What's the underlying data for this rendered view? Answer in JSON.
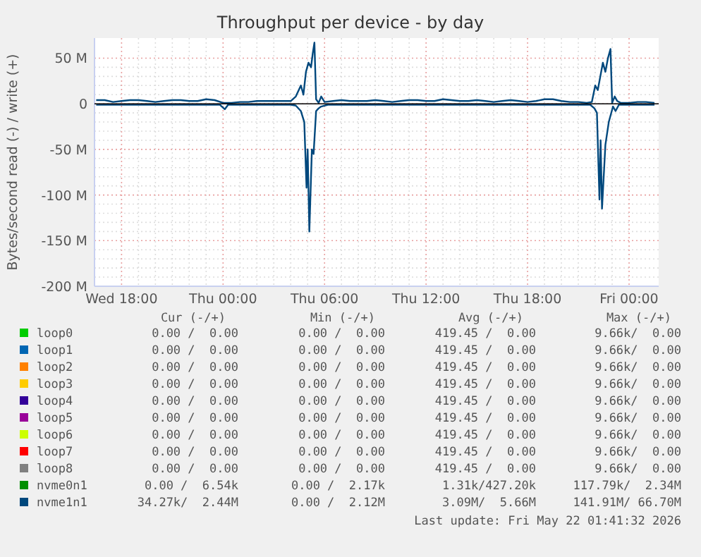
{
  "chart_data": {
    "type": "line",
    "title": "Throughput per device - by day",
    "ylabel": "Bytes/second read (-) / write (+)",
    "xlim": [
      "2026-05-20T16:24",
      "2026-05-22T01:45"
    ],
    "xticks": [
      {
        "value": "2026-05-20T18:00",
        "label": "Wed 18:00"
      },
      {
        "value": "2026-05-21T00:00",
        "label": "Thu 00:00"
      },
      {
        "value": "2026-05-21T06:00",
        "label": "Thu 06:00"
      },
      {
        "value": "2026-05-21T12:00",
        "label": "Thu 12:00"
      },
      {
        "value": "2026-05-21T18:00",
        "label": "Thu 18:00"
      },
      {
        "value": "2026-05-22T00:00",
        "label": "Fri 00:00"
      }
    ],
    "ylim": [
      -200,
      72
    ],
    "yticks": [
      {
        "value": -200,
        "label": "-200 M"
      },
      {
        "value": -150,
        "label": "-150 M"
      },
      {
        "value": -100,
        "label": "-100 M"
      },
      {
        "value": -50,
        "label": "-50 M"
      },
      0,
      {
        "value": 50,
        "label": "50 M"
      }
    ],
    "grid": true,
    "legend": "bottom",
    "line_style": "solid",
    "marker": "none",
    "series": [
      {
        "name": "loop0",
        "color": "#00cc00"
      },
      {
        "name": "loop1",
        "color": "#0066b3"
      },
      {
        "name": "loop2",
        "color": "#ff8000"
      },
      {
        "name": "loop3",
        "color": "#ffcc00"
      },
      {
        "name": "loop4",
        "color": "#330099"
      },
      {
        "name": "loop5",
        "color": "#990099"
      },
      {
        "name": "loop6",
        "color": "#ccff00"
      },
      {
        "name": "loop7",
        "color": "#ff0000"
      },
      {
        "name": "loop8",
        "color": "#808080"
      },
      {
        "name": "nvme0n1",
        "color": "#008f00"
      },
      {
        "name": "nvme1n1",
        "color": "#00487d",
        "x": [
          "2026-05-20T16:30",
          "2026-05-20T17:00",
          "2026-05-20T17:30",
          "2026-05-20T18:00",
          "2026-05-20T18:30",
          "2026-05-20T19:00",
          "2026-05-20T19:30",
          "2026-05-20T20:00",
          "2026-05-20T20:30",
          "2026-05-20T21:00",
          "2026-05-20T21:30",
          "2026-05-20T22:00",
          "2026-05-20T22:30",
          "2026-05-20T23:00",
          "2026-05-20T23:30",
          "2026-05-21T00:00",
          "2026-05-21T00:12",
          "2026-05-21T00:30",
          "2026-05-21T01:00",
          "2026-05-21T01:30",
          "2026-05-21T02:00",
          "2026-05-21T02:30",
          "2026-05-21T03:00",
          "2026-05-21T03:30",
          "2026-05-21T04:00",
          "2026-05-21T04:18",
          "2026-05-21T04:36",
          "2026-05-21T04:45",
          "2026-05-21T04:54",
          "2026-05-21T05:03",
          "2026-05-21T05:12",
          "2026-05-21T05:18",
          "2026-05-21T05:24",
          "2026-05-21T05:30",
          "2026-05-21T05:39",
          "2026-05-21T05:48",
          "2026-05-21T06:00",
          "2026-05-21T06:30",
          "2026-05-21T07:00",
          "2026-05-21T07:30",
          "2026-05-21T08:00",
          "2026-05-21T08:30",
          "2026-05-21T09:00",
          "2026-05-21T09:30",
          "2026-05-21T10:00",
          "2026-05-21T10:30",
          "2026-05-21T11:00",
          "2026-05-21T11:30",
          "2026-05-21T12:00",
          "2026-05-21T12:30",
          "2026-05-21T13:00",
          "2026-05-21T13:30",
          "2026-05-21T14:00",
          "2026-05-21T14:30",
          "2026-05-21T15:00",
          "2026-05-21T15:30",
          "2026-05-21T16:00",
          "2026-05-21T16:30",
          "2026-05-21T17:00",
          "2026-05-21T17:30",
          "2026-05-21T18:00",
          "2026-05-21T18:30",
          "2026-05-21T19:00",
          "2026-05-21T19:30",
          "2026-05-21T20:00",
          "2026-05-21T20:30",
          "2026-05-21T21:00",
          "2026-05-21T21:30",
          "2026-05-21T21:48",
          "2026-05-21T22:00",
          "2026-05-21T22:09",
          "2026-05-21T22:18",
          "2026-05-21T22:27",
          "2026-05-21T22:36",
          "2026-05-21T22:45",
          "2026-05-21T22:54",
          "2026-05-21T23:00",
          "2026-05-21T23:09",
          "2026-05-21T23:18",
          "2026-05-21T23:30",
          "2026-05-22T00:00",
          "2026-05-22T00:30",
          "2026-05-22T01:00",
          "2026-05-22T01:30"
        ],
        "values": [
          4,
          4,
          2,
          3,
          4,
          4,
          3,
          2,
          3,
          4,
          4,
          3,
          3,
          5,
          4,
          1,
          1,
          1,
          2,
          2,
          3,
          3,
          3,
          3,
          3,
          8,
          20,
          10,
          35,
          45,
          40,
          55,
          67,
          5,
          1,
          8,
          2,
          3,
          4,
          3,
          3,
          3,
          4,
          3,
          2,
          3,
          4,
          4,
          3,
          3,
          5,
          4,
          3,
          3,
          4,
          3,
          2,
          3,
          4,
          3,
          2,
          3,
          5,
          5,
          3,
          2,
          2,
          1,
          2,
          20,
          15,
          30,
          45,
          35,
          50,
          60,
          1,
          8,
          3,
          1,
          1,
          2,
          2,
          1
        ]
      },
      {
        "color": "#00487d",
        "x": [
          "2026-05-20T16:30",
          "2026-05-20T20:00",
          "2026-05-20T23:48",
          "2026-05-21T00:06",
          "2026-05-21T00:18",
          "2026-05-21T00:36",
          "2026-05-21T04:00",
          "2026-05-21T04:18",
          "2026-05-21T04:36",
          "2026-05-21T04:48",
          "2026-05-21T04:56",
          "2026-05-21T05:00",
          "2026-05-21T05:06",
          "2026-05-21T05:15",
          "2026-05-21T05:21",
          "2026-05-21T05:30",
          "2026-05-21T05:39",
          "2026-05-21T05:48",
          "2026-05-21T06:12",
          "2026-05-21T21:42",
          "2026-05-21T21:57",
          "2026-05-21T22:06",
          "2026-05-21T22:15",
          "2026-05-21T22:19",
          "2026-05-21T22:24",
          "2026-05-21T22:36",
          "2026-05-21T22:48",
          "2026-05-21T23:03",
          "2026-05-21T23:12",
          "2026-05-21T23:24",
          "2026-05-22T01:30"
        ],
        "values": [
          -1,
          -1,
          -1,
          -6,
          -1,
          -1,
          -1,
          -2,
          -8,
          -20,
          -92,
          -50,
          -140,
          -50,
          -55,
          -8,
          -5,
          -3,
          -1,
          -1,
          -5,
          -10,
          -105,
          -40,
          -115,
          -45,
          -20,
          -3,
          -8,
          -1,
          -1
        ]
      }
    ],
    "annotations": [
      "Cur (-/+)",
      "Min (-/+)",
      "Avg (-/+)",
      "Max (-/+)",
      "0.00 /  0.00",
      "0.00 /  0.00",
      "419.45 /  0.00",
      "9.66k/  0.00",
      "0.00 /  0.00",
      "0.00 /  0.00",
      "419.45 /  0.00",
      "9.66k/  0.00",
      "0.00 /  0.00",
      "0.00 /  0.00",
      "419.45 /  0.00",
      "9.66k/  0.00",
      "0.00 /  0.00",
      "0.00 /  0.00",
      "419.45 /  0.00",
      "9.66k/  0.00",
      "0.00 /  0.00",
      "0.00 /  0.00",
      "419.45 /  0.00",
      "9.66k/  0.00",
      "0.00 /  0.00",
      "0.00 /  0.00",
      "419.45 /  0.00",
      "9.66k/  0.00",
      "0.00 /  0.00",
      "0.00 /  0.00",
      "419.45 /  0.00",
      "9.66k/  0.00",
      "0.00 /  0.00",
      "0.00 /  0.00",
      "419.45 /  0.00",
      "9.66k/  0.00",
      "0.00 /  0.00",
      "0.00 /  0.00",
      "419.45 /  0.00",
      "9.66k/  0.00",
      "0.00 /  6.54k",
      "0.00 /  2.17k",
      "1.31k/427.20k",
      "117.79k/  2.34M",
      "34.27k/  2.44M",
      "0.00 /  2.12M",
      "3.09M/  5.66M",
      "141.91M/ 66.70M",
      "Last update: Fri May 22 01:41:32 2026"
    ]
  }
}
